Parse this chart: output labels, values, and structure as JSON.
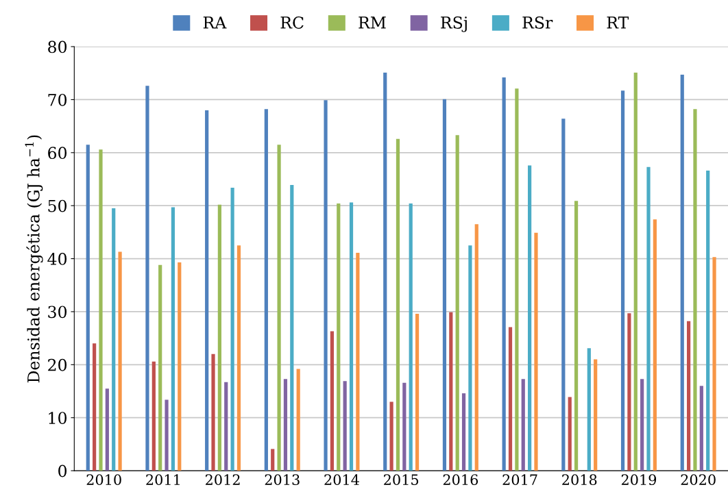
{
  "chart_data": {
    "type": "bar",
    "ylabel": "Densidad energética (GJ ha$^{−1}$)",
    "categories": [
      "2010",
      "2011",
      "2012",
      "2013",
      "2014",
      "2015",
      "2016",
      "2017",
      "2018",
      "2019",
      "2020"
    ],
    "series": [
      {
        "name": "RA",
        "color": "#4f81bd",
        "values": [
          61.5,
          72.6,
          68.0,
          68.2,
          69.9,
          75.1,
          70.1,
          74.2,
          66.4,
          71.7,
          74.7
        ]
      },
      {
        "name": "RC",
        "color": "#c0504d",
        "values": [
          24.0,
          20.6,
          22.0,
          4.1,
          26.3,
          13.0,
          29.9,
          27.1,
          13.9,
          29.7,
          28.2
        ]
      },
      {
        "name": "RM",
        "color": "#9bbb59",
        "values": [
          60.6,
          38.8,
          50.2,
          61.5,
          50.4,
          62.6,
          63.3,
          72.1,
          50.9,
          75.1,
          68.2
        ]
      },
      {
        "name": "RSj",
        "color": "#8064a2",
        "values": [
          15.5,
          13.4,
          16.7,
          17.3,
          16.9,
          16.6,
          14.6,
          17.3,
          null,
          17.3,
          16.0
        ]
      },
      {
        "name": "RSr",
        "color": "#4bacc6",
        "values": [
          49.5,
          49.7,
          53.4,
          53.9,
          50.6,
          50.4,
          42.5,
          57.6,
          23.1,
          57.3,
          56.6
        ]
      },
      {
        "name": "RT",
        "color": "#f79646",
        "values": [
          41.3,
          39.3,
          42.5,
          19.2,
          41.1,
          29.6,
          46.5,
          44.9,
          21.0,
          47.4,
          40.3
        ]
      }
    ],
    "ylim": [
      0,
      80
    ],
    "yticks": [
      0,
      10,
      20,
      30,
      40,
      50,
      60,
      70,
      80
    ],
    "grid": "y",
    "legend": "top"
  }
}
